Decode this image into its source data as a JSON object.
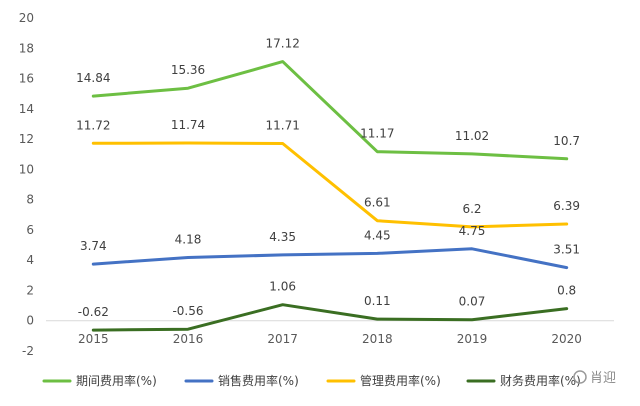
{
  "chart_data": {
    "type": "line",
    "x": [
      "2015",
      "2016",
      "2017",
      "2018",
      "2019",
      "2020"
    ],
    "ylim": [
      -2,
      20
    ],
    "yticks": [
      "-2",
      "0",
      "2",
      "4",
      "6",
      "8",
      "10",
      "12",
      "14",
      "16",
      "18",
      "20"
    ],
    "grid": false,
    "legend_position": "bottom",
    "series": [
      {
        "name": "期间费用率(%)",
        "color": "#6dbf43",
        "values": [
          14.84,
          15.36,
          17.12,
          11.17,
          11.02,
          10.7
        ],
        "labels": [
          "14.84",
          "15.36",
          "17.12",
          "11.17",
          "11.02",
          "10.7"
        ]
      },
      {
        "name": "销售费用率(%)",
        "color": "#4472c4",
        "values": [
          3.74,
          4.18,
          4.35,
          4.45,
          4.75,
          3.51
        ],
        "labels": [
          "3.74",
          "4.18",
          "4.35",
          "4.45",
          "4.75",
          "3.51"
        ]
      },
      {
        "name": "管理费用率(%)",
        "color": "#ffc000",
        "values": [
          11.72,
          11.74,
          11.71,
          6.61,
          6.2,
          6.39
        ],
        "labels": [
          "11.72",
          "11.74",
          "11.71",
          "6.61",
          "6.2",
          "6.39"
        ]
      },
      {
        "name": "财务费用率(%)",
        "color": "#3a6e22",
        "values": [
          -0.62,
          -0.56,
          1.06,
          0.11,
          0.07,
          0.8
        ],
        "labels": [
          "-0.62",
          "-0.56",
          "1.06",
          "0.11",
          "0.07",
          "0.8"
        ]
      }
    ]
  },
  "watermark": {
    "text": "肖迎"
  }
}
